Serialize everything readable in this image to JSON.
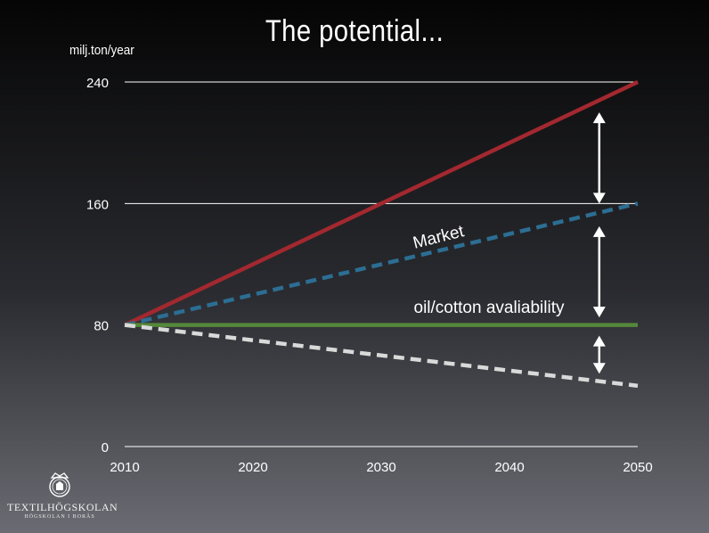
{
  "title": "The potential...",
  "colors": {
    "demand": "#a3282f",
    "market": "#2c6e93",
    "oil_cotton": "#55883a",
    "decline": "#d9d9d9",
    "gridline": "#ffffff",
    "arrow": "#ffffff"
  },
  "chart_data": {
    "type": "line",
    "ylabel": "milj.ton/year",
    "xlabel": "",
    "xlim": [
      2010,
      2050
    ],
    "ylim": [
      0,
      240
    ],
    "x_ticks": [
      "2010",
      "2020",
      "2030",
      "2040",
      "2050"
    ],
    "y_ticks": [
      "0",
      "80",
      "160",
      "240"
    ],
    "grid": "horizontal",
    "series": [
      {
        "key": "demand",
        "style": "solid",
        "color": "#a3282f",
        "x": [
          2010,
          2050
        ],
        "y": [
          80,
          240
        ]
      },
      {
        "key": "market",
        "name": "Market",
        "style": "dashed",
        "color": "#2c6e93",
        "x": [
          2010,
          2050
        ],
        "y": [
          80,
          160
        ]
      },
      {
        "key": "oil_cotton",
        "name": "oil/cotton avaliability",
        "style": "solid",
        "color": "#55883a",
        "x": [
          2010,
          2050
        ],
        "y": [
          80,
          80
        ]
      },
      {
        "key": "decline",
        "style": "dashed",
        "color": "#d9d9d9",
        "x": [
          2010,
          2050
        ],
        "y": [
          80,
          40
        ]
      }
    ],
    "annotations": [
      {
        "text": "Market"
      },
      {
        "text": "oil/cotton avaliability"
      }
    ],
    "arrows": [
      {
        "x": 2047,
        "from": 160,
        "to": 220,
        "heads": "both"
      },
      {
        "x": 2047,
        "from": 85,
        "to": 145,
        "heads": "both"
      },
      {
        "x": 2047,
        "from": 48,
        "to": 73,
        "heads": "both"
      }
    ]
  },
  "logo": {
    "name": "TEXTILHÖGSKOLAN",
    "subtitle": "HÖGSKOLAN I BORÅS"
  }
}
